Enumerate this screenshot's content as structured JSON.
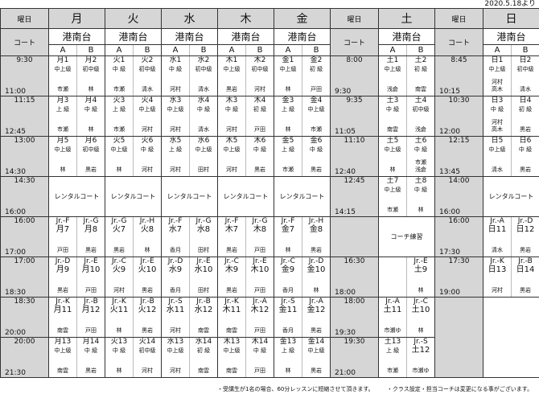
{
  "effective_date": "2020.5.18より",
  "header": {
    "weekday_label": "曜日",
    "court_label": "コート",
    "location": "港南台",
    "court_a": "A",
    "court_b": "B"
  },
  "days": {
    "mon": "月",
    "tue": "火",
    "wed": "水",
    "thu": "木",
    "fri": "金",
    "sat": "土",
    "sun": "日"
  },
  "rows": [
    {
      "time": [
        "9:30",
        "11:00"
      ],
      "sat_time": [
        "8:00",
        "9:30"
      ],
      "sun_time": [
        "8:45",
        "10:15"
      ],
      "mon": [
        {
          "code": "月1",
          "level": "中上級",
          "coach": "市瀬"
        },
        {
          "code": "月2",
          "level": "初中級",
          "coach": "林"
        }
      ],
      "tue": [
        {
          "code": "火1",
          "level": "中 級",
          "coach": "市瀬"
        },
        {
          "code": "火2",
          "level": "初中級",
          "coach": "清水"
        }
      ],
      "wed": [
        {
          "code": "水1",
          "level": "中 級",
          "coach": "河村"
        },
        {
          "code": "水2",
          "level": "初中級",
          "coach": "清水"
        }
      ],
      "thu": [
        {
          "code": "木1",
          "level": "中上級",
          "coach": "黒岩"
        },
        {
          "code": "木2",
          "level": "初中級",
          "coach": "河村"
        }
      ],
      "fri": [
        {
          "code": "金1",
          "level": "中上級",
          "coach": "林"
        },
        {
          "code": "金2",
          "level": "初 級",
          "coach": "戸田"
        }
      ],
      "sat": [
        {
          "code": "土1",
          "level": "中上級",
          "coach": "浅倉"
        },
        {
          "code": "土2",
          "level": "初 級",
          "coach": "南雲"
        }
      ],
      "sun": [
        {
          "code": "日1",
          "level": "中上級",
          "coach": "河村\n高木"
        },
        {
          "code": "日2",
          "level": "初中級",
          "coach": "清水"
        }
      ]
    },
    {
      "time": [
        "11:15",
        "12:45"
      ],
      "sat_time": [
        "9:35",
        "11:05"
      ],
      "sun_time": [
        "10:30",
        "12:00"
      ],
      "mon": [
        {
          "code": "月3",
          "level": "上 級",
          "coach": "市瀬"
        },
        {
          "code": "月4",
          "level": "中 級",
          "coach": "林"
        }
      ],
      "tue": [
        {
          "code": "火3",
          "level": "上 級",
          "coach": "市瀬"
        },
        {
          "code": "火4",
          "level": "中上級",
          "coach": "河村"
        }
      ],
      "wed": [
        {
          "code": "水3",
          "level": "中上級",
          "coach": "河村"
        },
        {
          "code": "水4",
          "level": "中 級",
          "coach": "清水"
        }
      ],
      "thu": [
        {
          "code": "木3",
          "level": "中 級",
          "coach": "河村"
        },
        {
          "code": "木4",
          "level": "初 級",
          "coach": "戸田"
        }
      ],
      "fri": [
        {
          "code": "金3",
          "level": "上 級",
          "coach": "林"
        },
        {
          "code": "金4",
          "level": "中上級",
          "coach": "市瀬"
        }
      ],
      "sat": [
        {
          "code": "土3",
          "level": "中 級",
          "coach": "南雲"
        },
        {
          "code": "土4",
          "level": "初中級",
          "coach": "浅倉"
        }
      ],
      "sun": [
        {
          "code": "日3",
          "level": "中 級",
          "coach": "河村\n高木"
        },
        {
          "code": "日4",
          "level": "初 級",
          "coach": "黒岩"
        }
      ]
    },
    {
      "time": [
        "13:00",
        "14:30"
      ],
      "sat_time": [
        "11:10",
        "12:40"
      ],
      "sun_time": [
        "12:15",
        "13:45"
      ],
      "mon": [
        {
          "code": "月5",
          "level": "中上級",
          "coach": "林"
        },
        {
          "code": "月6",
          "level": "初中級",
          "coach": "黒岩"
        }
      ],
      "tue": [
        {
          "code": "火5",
          "level": "中上級",
          "coach": "林"
        },
        {
          "code": "火6",
          "level": "中 級",
          "coach": "河村"
        }
      ],
      "wed": [
        {
          "code": "水5",
          "level": "上 級",
          "coach": "河村"
        },
        {
          "code": "水6",
          "level": "中上級",
          "coach": "田村"
        }
      ],
      "thu": [
        {
          "code": "木5",
          "level": "中上級",
          "coach": "河村"
        },
        {
          "code": "木6",
          "level": "中 級",
          "coach": "黒岩"
        }
      ],
      "fri": [
        {
          "code": "金5",
          "level": "上 級",
          "coach": "市瀬"
        },
        {
          "code": "金6",
          "level": "中 級",
          "coach": "黒岩"
        }
      ],
      "sat": [
        {
          "code": "土5",
          "level": "中上級",
          "coach": "林"
        },
        {
          "code": "土6",
          "level": "中 級",
          "coach": "市瀬\n浅倉"
        }
      ],
      "sun": [
        {
          "code": "日5",
          "level": "中上級",
          "coach": "清水"
        },
        {
          "code": "日6",
          "level": "中 級",
          "coach": "黒岩"
        }
      ]
    },
    {
      "time": [
        "14:30",
        "16:00"
      ],
      "sat_time": [
        "12:45",
        "14:15"
      ],
      "sun_time": [
        "14:00",
        "16:00"
      ],
      "mon": {
        "merged": "レンタルコート"
      },
      "tue": {
        "merged": "レンタルコート"
      },
      "wed": {
        "merged": "レンタルコート"
      },
      "thu": {
        "merged": "レンタルコート"
      },
      "fri": {
        "merged": "レンタルコート"
      },
      "sat": [
        {
          "code": "土7",
          "level": "中上級",
          "coach": "市瀬"
        },
        {
          "code": "土8",
          "level": "中 級",
          "coach": "林"
        }
      ],
      "sun": {
        "merged": "レンタルコート"
      }
    },
    {
      "time": [
        "16:00",
        "17:00"
      ],
      "sat_time": [
        "",
        ""
      ],
      "sun_time": [
        "16:00",
        "17:30"
      ],
      "mon": [
        {
          "jr": "Jr.-F",
          "code": "月7",
          "coach": "戸田"
        },
        {
          "jr": "Jr.-G",
          "code": "月8",
          "coach": "黒岩"
        }
      ],
      "tue": [
        {
          "jr": "Jr.-G",
          "code": "火7",
          "coach": "黒岩"
        },
        {
          "jr": "Jr.-H",
          "code": "火8",
          "coach": "林"
        }
      ],
      "wed": [
        {
          "jr": "Jr.-F",
          "code": "水7",
          "coach": "香月"
        },
        {
          "jr": "Jr.-G",
          "code": "水8",
          "coach": "田村"
        }
      ],
      "thu": [
        {
          "jr": "Jr.-F",
          "code": "木7",
          "coach": "黒岩"
        },
        {
          "jr": "Jr.-G",
          "code": "木8",
          "coach": "戸田"
        }
      ],
      "fri": [
        {
          "jr": "Jr.-F",
          "code": "金7",
          "coach": "林"
        },
        {
          "jr": "Jr.-H",
          "code": "金8",
          "coach": "黒岩"
        }
      ],
      "sat": {
        "merged": "コーチ練習"
      },
      "sun": [
        {
          "jr": "Jr.-A",
          "code": "日11",
          "coach": "清水"
        },
        {
          "jr": "Jr.-D",
          "code": "日12",
          "coach": "黒岩"
        }
      ]
    },
    {
      "time": [
        "17:00",
        "18:30"
      ],
      "sat_time": [
        "16:30",
        "18:00"
      ],
      "sun_time": [
        "17:30",
        "19:00"
      ],
      "mon": [
        {
          "jr": "Jr.-D",
          "code": "月9",
          "coach": "黒岩"
        },
        {
          "jr": "Jr.-E",
          "code": "月10",
          "coach": "戸田"
        }
      ],
      "tue": [
        {
          "jr": "Jr.-C",
          "code": "火9",
          "coach": "河村"
        },
        {
          "jr": "Jr.-E",
          "code": "火10",
          "coach": "黒岩"
        }
      ],
      "wed": [
        {
          "jr": "Jr.-D",
          "code": "水9",
          "coach": "香月"
        },
        {
          "jr": "Jr.-E",
          "code": "水10",
          "coach": "田村"
        }
      ],
      "thu": [
        {
          "jr": "Jr.-C",
          "code": "木9",
          "coach": "黒岩"
        },
        {
          "jr": "Jr.-E",
          "code": "木10",
          "coach": "戸田"
        }
      ],
      "fri": [
        {
          "jr": "Jr.-C",
          "code": "金9",
          "coach": "香月"
        },
        {
          "jr": "Jr.-D",
          "code": "金10",
          "coach": "林"
        }
      ],
      "sat": [
        null,
        {
          "jr": "Jr.-E",
          "code": "土9",
          "coach": "林"
        }
      ],
      "sun": [
        {
          "jr": "Jr.-K",
          "code": "日13",
          "coach": "河村"
        },
        {
          "jr": "Jr.-B",
          "code": "日14",
          "coach": "黒岩"
        }
      ]
    },
    {
      "time": [
        "18:30",
        "20:00"
      ],
      "sat_time": [
        "18:00",
        "19:30"
      ],
      "sun_time": null,
      "mon": [
        {
          "jr": "Jr.-K",
          "code": "月11",
          "coach": "南雲"
        },
        {
          "jr": "Jr.-B",
          "code": "月12",
          "coach": "戸田"
        }
      ],
      "tue": [
        {
          "jr": "Jr.-K",
          "code": "火11",
          "coach": "林"
        },
        {
          "jr": "Jr.-B",
          "code": "火12",
          "coach": "黒岩"
        }
      ],
      "wed": [
        {
          "jr": "Jr.-S",
          "code": "水11",
          "coach": "河村"
        },
        {
          "jr": "Jr.-B",
          "code": "水12",
          "coach": "南雲"
        }
      ],
      "thu": [
        {
          "jr": "Jr.-K",
          "code": "木11",
          "coach": "南雲"
        },
        {
          "jr": "Jr.-A",
          "code": "木12",
          "coach": "戸田"
        }
      ],
      "fri": [
        {
          "jr": "Jr.-S",
          "code": "金11",
          "coach": "香月"
        },
        {
          "jr": "Jr.-A",
          "code": "金12",
          "coach": "黒岩"
        }
      ],
      "sat": [
        {
          "jr": "Jr.-A",
          "code": "土11",
          "coach": "市瀬ゆ"
        },
        {
          "jr": "Jr.-C",
          "code": "土10",
          "coach": "林"
        }
      ],
      "sun": null
    },
    {
      "time": [
        "20:00",
        "21:30"
      ],
      "sat_time": [
        "19:30",
        "21:00"
      ],
      "sun_time": null,
      "mon": [
        {
          "code": "月13",
          "level": "中上級",
          "coach": "南雲"
        },
        {
          "code": "月14",
          "level": "中 級",
          "coach": "黒岩"
        }
      ],
      "tue": [
        {
          "code": "火13",
          "level": "中 級",
          "coach": "林"
        },
        {
          "code": "火14",
          "level": "初中級",
          "coach": "河村"
        }
      ],
      "wed": [
        {
          "code": "水13",
          "level": "中上級",
          "coach": "河村"
        },
        {
          "code": "水14",
          "level": "初 級",
          "coach": "南雲"
        }
      ],
      "thu": [
        {
          "code": "木13",
          "level": "中上級",
          "coach": "南雲"
        },
        {
          "code": "木14",
          "level": "中 級",
          "coach": "戸田"
        }
      ],
      "fri": [
        {
          "code": "金13",
          "level": "上 級",
          "coach": "林"
        },
        {
          "code": "金14",
          "level": "中上級",
          "coach": "黒岩"
        }
      ],
      "sat": [
        {
          "code": "土13",
          "level": "上 級",
          "coach": "市瀬"
        },
        {
          "jr": "Jr.-S",
          "code": "土12",
          "coach": "市瀬ゆ"
        }
      ],
      "sun": null
    }
  ],
  "notes": [
    "・受講生が1名の場合、60分レッスンに短縮させて頂きます。",
    "・クラス設定・担当コーチは変更になる事がございます。"
  ]
}
